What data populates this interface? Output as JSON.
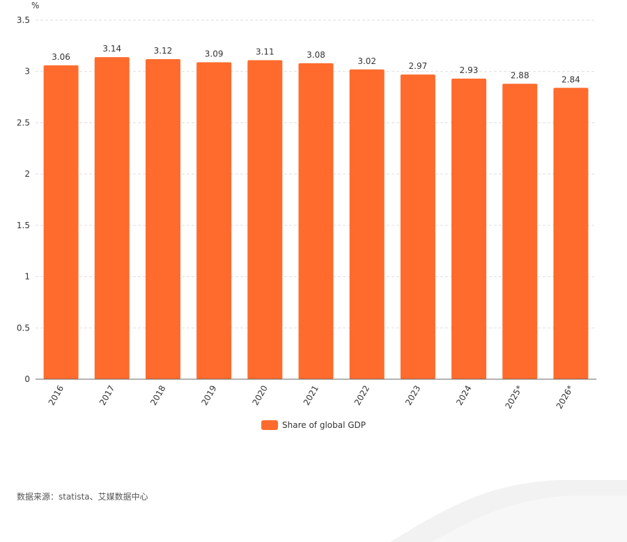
{
  "colors": {
    "bar": "#FF6B2C",
    "grid": "#dddddd",
    "axis": "#666666",
    "text": "#333333"
  },
  "chart_data": {
    "type": "bar",
    "title": "",
    "xlabel": "",
    "ylabel": "%",
    "ylim": [
      0,
      3.5
    ],
    "yticks": [
      0,
      0.5,
      1,
      1.5,
      2,
      2.5,
      3,
      3.5
    ],
    "categories": [
      "2016",
      "2017",
      "2018",
      "2019",
      "2020",
      "2021",
      "2022",
      "2023",
      "2024",
      "2025*",
      "2026*"
    ],
    "series": [
      {
        "name": "Share of global GDP",
        "values": [
          3.06,
          3.14,
          3.12,
          3.09,
          3.11,
          3.08,
          3.02,
          2.97,
          2.93,
          2.88,
          2.84
        ]
      }
    ],
    "grid": true,
    "legend": "bottom-center"
  },
  "footer": {
    "source": "数据来源：statista、艾媒数据中心"
  }
}
